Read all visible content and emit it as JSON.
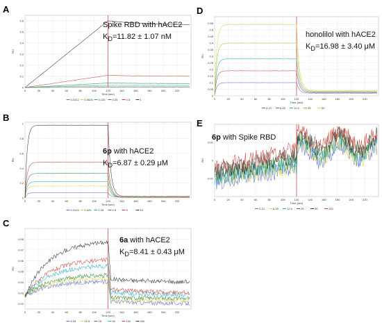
{
  "figure": {
    "panels": [
      {
        "letter": "A",
        "annotation": {
          "title": "Spike RBD with hACE2",
          "compound": "",
          "target": "",
          "kd_prefix": "K",
          "kd_sub": "D",
          "kd_value": "=11.82 ± 1.07 nM"
        }
      },
      {
        "letter": "B",
        "annotation": {
          "title": "",
          "compound": "6p",
          "target": " with hACE2",
          "kd_prefix": "K",
          "kd_sub": "D",
          "kd_value": "=6.87 ± 0.29 μM"
        }
      },
      {
        "letter": "C",
        "annotation": {
          "title": "",
          "compound": "6a",
          "target": " with hACE2",
          "kd_prefix": "K",
          "kd_sub": "D",
          "kd_value": "=8.41 ± 0.43 μM"
        }
      },
      {
        "letter": "D",
        "annotation": {
          "title": "honolilol with hACE2",
          "compound": "",
          "target": "",
          "kd_prefix": "K",
          "kd_sub": "D",
          "kd_value": "=16.98 ± 3.40 μM"
        }
      },
      {
        "letter": "E",
        "annotation": {
          "title": "",
          "compound": "6p",
          "target": " with Spike RBD",
          "kd_prefix": "",
          "kd_sub": "",
          "kd_value": ""
        }
      }
    ]
  },
  "chart_data": [
    {
      "id": "A",
      "type": "line",
      "xlabel": "Time (sec)",
      "ylabel": "RU",
      "xlim": [
        0,
        240
      ],
      "ylim": [
        0,
        0.65
      ],
      "xticks": [
        0,
        20,
        40,
        60,
        80,
        100,
        120,
        140,
        160,
        180,
        200,
        220
      ],
      "yticks": [
        0,
        0.1,
        0.2,
        0.3,
        0.4,
        0.5,
        0.6
      ],
      "ytick_labels": [
        "0",
        "0.1",
        "0.2",
        "0.3",
        "0.4",
        "0.5",
        "0.6"
      ],
      "vline_x": 120,
      "noise": 0.002,
      "series": [
        {
          "name": "0.0312",
          "color": "#5b6fd6",
          "plateau": 0.005,
          "final": 0.005,
          "curve": "linear"
        },
        {
          "name": "0.0625",
          "color": "#e3d34a",
          "plateau": 0.01,
          "final": 0.009,
          "curve": "linear"
        },
        {
          "name": "0.125",
          "color": "#2aa8c4",
          "plateau": 0.02,
          "final": 0.018,
          "curve": "linear"
        },
        {
          "name": "0.25",
          "color": "#2f8a3a",
          "plateau": 0.04,
          "final": 0.035,
          "curve": "linear"
        },
        {
          "name": "0.5",
          "color": "#c9423c",
          "plateau": 0.11,
          "final": 0.1,
          "curve": "linear"
        },
        {
          "name": "1",
          "color": "#303030",
          "plateau": 0.6,
          "final": 0.56,
          "curve": "linear"
        }
      ]
    },
    {
      "id": "B",
      "type": "line",
      "xlabel": "Time (sec)",
      "ylabel": "RU",
      "xlim": [
        0,
        240
      ],
      "ylim": [
        0,
        1.02
      ],
      "xticks": [
        0,
        20,
        40,
        60,
        80,
        100,
        120,
        140,
        160,
        180,
        200,
        220
      ],
      "yticks": [
        0,
        0.2,
        0.4,
        0.6,
        0.8,
        1.0
      ],
      "ytick_labels": [
        "0",
        "0.2",
        "0.4",
        "0.6",
        "0.8",
        "1"
      ],
      "vline_x": 120,
      "noise": 0.003,
      "series": [
        {
          "name": "0.3125",
          "color": "#5b6fd6",
          "plateau": 0.07,
          "final": 0.01,
          "curve": "fast"
        },
        {
          "name": "0.625",
          "color": "#e3d34a",
          "plateau": 0.16,
          "final": 0.01,
          "curve": "fast"
        },
        {
          "name": "1.25",
          "color": "#2aa8c4",
          "plateau": 0.22,
          "final": 0.01,
          "curve": "fast"
        },
        {
          "name": "2.5",
          "color": "#2f8a3a",
          "plateau": 0.33,
          "final": 0.01,
          "curve": "fast"
        },
        {
          "name": "5",
          "color": "#c9423c",
          "plateau": 0.48,
          "final": 0.01,
          "curve": "fast"
        },
        {
          "name": "10",
          "color": "#303030",
          "plateau": 0.98,
          "final": 0.02,
          "curve": "fast"
        }
      ]
    },
    {
      "id": "C",
      "type": "line",
      "xlabel": "Time (sec)",
      "ylabel": "RU",
      "xlim": [
        0,
        240
      ],
      "ylim": [
        0.015,
        0.09
      ],
      "xticks": [
        0,
        20,
        40,
        60,
        80,
        100,
        120,
        140,
        160,
        180,
        200,
        220
      ],
      "yticks": [
        0.02,
        0.03,
        0.04,
        0.05,
        0.06,
        0.07,
        0.08
      ],
      "ytick_labels": [
        "0.02",
        "0.03",
        "0.04",
        "0.05",
        "0.06",
        "0.07",
        "0.08"
      ],
      "vline_x": 120,
      "noise": 0.004,
      "series": [
        {
          "name": "6.25",
          "color": "#5b6fd6",
          "plateau": 0.041,
          "final": 0.02,
          "curve": "slow"
        },
        {
          "name": "12.5",
          "color": "#e3d34a",
          "plateau": 0.044,
          "final": 0.023,
          "curve": "slow"
        },
        {
          "name": "25",
          "color": "#2f8a3a",
          "plateau": 0.047,
          "final": 0.025,
          "curve": "slow"
        },
        {
          "name": "50",
          "color": "#2aa8c4",
          "plateau": 0.056,
          "final": 0.028,
          "curve": "slow"
        },
        {
          "name": "100",
          "color": "#c9423c",
          "plateau": 0.062,
          "final": 0.03,
          "curve": "slow"
        },
        {
          "name": "200",
          "color": "#303030",
          "plateau": 0.079,
          "final": 0.04,
          "curve": "slow"
        }
      ]
    },
    {
      "id": "D",
      "type": "line",
      "xlabel": "Time (sec)",
      "ylabel": "RU",
      "xlim": [
        0,
        240
      ],
      "ylim": [
        0,
        0.6
      ],
      "xticks": [
        0,
        20,
        40,
        60,
        80,
        100,
        120,
        140,
        160,
        180,
        200,
        220
      ],
      "yticks": [
        0,
        0.05,
        0.1,
        0.15,
        0.2,
        0.25,
        0.3,
        0.35,
        0.4,
        0.45,
        0.5,
        0.55
      ],
      "ytick_labels": [
        "0",
        "0.05",
        "0.1",
        "0.15",
        "0.2",
        "0.25",
        "0.3",
        "0.35",
        "0.4",
        "0.45",
        "0.5",
        "0.55"
      ],
      "vline_x": 120,
      "noise": 0.002,
      "series": [
        {
          "name": "3.13",
          "color": "#5b6fd6",
          "plateau": 0.1,
          "final": 0.02,
          "curve": "fast"
        },
        {
          "name": "6.25",
          "color": "#c9423c",
          "plateau": 0.19,
          "final": 0.025,
          "curve": "fast"
        },
        {
          "name": "12.5",
          "color": "#2aa8c4",
          "plateau": 0.28,
          "final": 0.03,
          "curve": "fast"
        },
        {
          "name": "25",
          "color": "#9cc53e",
          "plateau": 0.4,
          "final": 0.035,
          "curve": "fast"
        },
        {
          "name": "50",
          "color": "#e3d34a",
          "plateau": 0.54,
          "final": 0.04,
          "curve": "fast"
        }
      ]
    },
    {
      "id": "E",
      "type": "line",
      "xlabel": "Time (sec)",
      "ylabel": "RU",
      "xlim": [
        0,
        240
      ],
      "ylim": [
        -0.02,
        0.02
      ],
      "xticks": [
        0,
        20,
        40,
        60,
        80,
        100,
        120,
        140,
        160,
        180,
        200,
        220
      ],
      "yticks": [
        -0.01,
        0,
        0.01
      ],
      "ytick_labels": [
        "-0.01",
        "0",
        "0.01"
      ],
      "vline_x": 120,
      "noise": 0.0045,
      "series": [
        {
          "name": "3.13",
          "color": "#5b6fd6",
          "plateau": -0.004,
          "final": 0.004,
          "curve": "noisy"
        },
        {
          "name": "6.25",
          "color": "#e3d34a",
          "plateau": -0.003,
          "final": 0.005,
          "curve": "noisy"
        },
        {
          "name": "12.5",
          "color": "#2aa8c4",
          "plateau": -0.002,
          "final": 0.006,
          "curve": "noisy"
        },
        {
          "name": "25",
          "color": "#2f8a3a",
          "plateau": 0.0,
          "final": 0.008,
          "curve": "noisy"
        },
        {
          "name": "50",
          "color": "#303030",
          "plateau": 0.003,
          "final": 0.01,
          "curve": "noisy"
        },
        {
          "name": "100",
          "color": "#c9423c",
          "plateau": 0.006,
          "final": 0.012,
          "curve": "noisy"
        }
      ]
    }
  ]
}
